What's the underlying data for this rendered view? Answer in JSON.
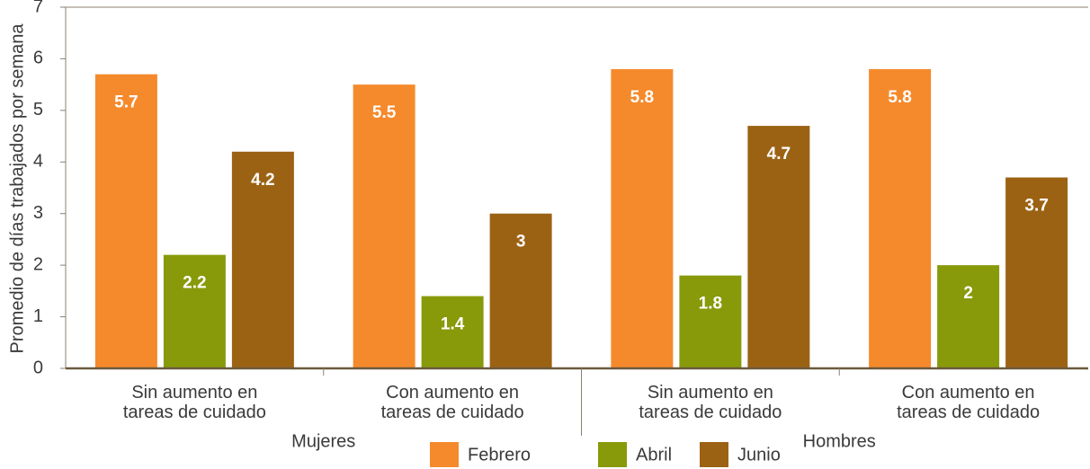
{
  "chart_data": {
    "type": "bar",
    "y_label": "Promedio de días trabajados por semana",
    "categories": [
      [
        "Sin aumento en",
        "tareas de cuidado"
      ],
      [
        "Con aumento en",
        "tareas de cuidado"
      ],
      [
        "Sin aumento en",
        "tareas de cuidado"
      ],
      [
        "Con aumento en",
        "tareas de cuidado"
      ]
    ],
    "groups": [
      "Mujeres",
      "Hombres"
    ],
    "series": [
      {
        "name": "Febrero",
        "color": "#f58a2c",
        "values": [
          5.7,
          5.5,
          5.8,
          5.8
        ]
      },
      {
        "name": "Abril",
        "color": "#889a0a",
        "values": [
          2.2,
          1.4,
          1.8,
          2
        ]
      },
      {
        "name": "Junio",
        "color": "#9c6214",
        "values": [
          4.2,
          3,
          4.7,
          3.7
        ]
      }
    ],
    "ylim": [
      0,
      7
    ],
    "yticks": [
      0,
      1,
      2,
      3,
      4,
      5,
      6,
      7
    ],
    "legend": "bottom"
  }
}
